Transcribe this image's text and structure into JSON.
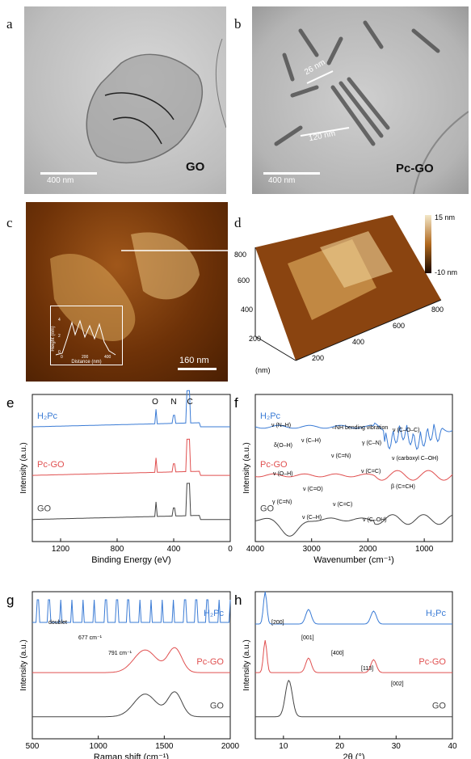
{
  "panels": {
    "a": {
      "label": "a",
      "scalebar": "400 nm",
      "name": "GO"
    },
    "b": {
      "label": "b",
      "scalebar": "400 nm",
      "name": "Pc-GO",
      "dim1": "26 nm",
      "dim2": "120 nm"
    },
    "c": {
      "label": "c",
      "scalebar": "160 nm",
      "inset_xlabel": "Distance (nm)",
      "inset_ylabel": "Height (nm)",
      "inset_xticks": [
        "0",
        "200",
        "400"
      ],
      "inset_yticks": [
        "0",
        "2",
        "4"
      ]
    },
    "d": {
      "label": "d",
      "colorbar_top": "15 nm",
      "colorbar_bottom": "-10 nm",
      "yticks": [
        "800",
        "600",
        "400",
        "200"
      ],
      "xticks": [
        "200",
        "400",
        "600",
        "800"
      ],
      "unit": "(nm)"
    },
    "e": {
      "label": "e"
    },
    "f": {
      "label": "f"
    },
    "g": {
      "label": "g"
    },
    "h": {
      "label": "h"
    }
  },
  "chart_data": [
    {
      "id": "e",
      "type": "line",
      "xlabel": "Binding Energy (eV)",
      "ylabel": "Intensity (a.u.)",
      "xlim": [
        1400,
        0
      ],
      "xticks": [
        1200,
        800,
        400,
        0
      ],
      "series": [
        {
          "name": "H₂Pc",
          "color": "#3a7bd5",
          "offset": 0.82
        },
        {
          "name": "Pc-GO",
          "color": "#e05050",
          "offset": 0.5
        },
        {
          "name": "GO",
          "color": "#444444",
          "offset": 0.15
        }
      ],
      "peaks": [
        {
          "label": "O",
          "x": 531
        },
        {
          "label": "N",
          "x": 400
        },
        {
          "label": "C",
          "x": 285
        }
      ]
    },
    {
      "id": "f",
      "type": "line",
      "xlabel": "Wavenumber (cm⁻¹)",
      "ylabel": "Intensity (a.u.)",
      "xlim": [
        4000,
        500
      ],
      "xticks": [
        4000,
        3000,
        2000,
        1000
      ],
      "series": [
        {
          "name": "H₂Pc",
          "color": "#3a7bd5"
        },
        {
          "name": "Pc-GO",
          "color": "#e05050"
        },
        {
          "name": "GO",
          "color": "#444444"
        }
      ],
      "annotations": [
        "ν (N–H)",
        "ν (C–H)",
        "ν (C=N)",
        "ν (C=C)",
        "β (C=CH)",
        "γ (C=N)",
        "ν (C–H)",
        "–NH bending vibration",
        "γ (C–N)",
        "ν (carboxyl C–OH)",
        "ν (O–H)",
        "ν (C=O)",
        "ν (C=C)",
        "ν (C–OH)",
        "ν (C–O–C)",
        "δ(O–H)"
      ]
    },
    {
      "id": "g",
      "type": "line",
      "xlabel": "Raman shift (cm⁻¹)",
      "ylabel": "Intensity (a.u.)",
      "xlim": [
        500,
        2000
      ],
      "xticks": [
        500,
        1000,
        1500,
        2000
      ],
      "series": [
        {
          "name": "H₂Pc",
          "color": "#3a7bd5"
        },
        {
          "name": "Pc-GO",
          "color": "#e05050"
        },
        {
          "name": "GO",
          "color": "#444444"
        }
      ],
      "annotations": [
        "doublet",
        "677 cm⁻¹",
        "791 cm⁻¹"
      ]
    },
    {
      "id": "h",
      "type": "line",
      "xlabel": "2θ (°)",
      "ylabel": "Intensity (a.u.)",
      "xlim": [
        5,
        40
      ],
      "xticks": [
        10,
        20,
        30,
        40
      ],
      "series": [
        {
          "name": "H₂Pc",
          "color": "#3a7bd5"
        },
        {
          "name": "Pc-GO",
          "color": "#e05050"
        },
        {
          "name": "GO",
          "color": "#444444"
        }
      ],
      "annotations": [
        "[200]",
        "[001]",
        "[400]",
        "[113]",
        "[002]"
      ]
    }
  ]
}
